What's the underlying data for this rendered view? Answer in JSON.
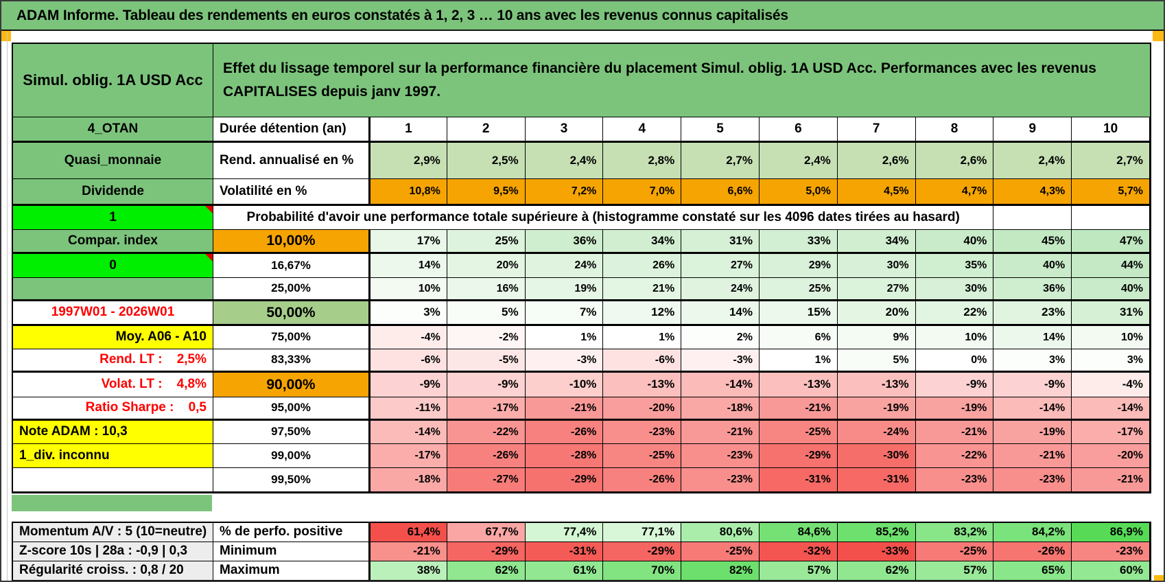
{
  "title": "ADAM Informe. Tableau des rendements en euros constatés à 1, 2, 3 … 10 ans avec les revenus connus capitalisés",
  "panel": {
    "product": "Simul. oblig. 1A USD Acc",
    "description": "Effet du lissage temporel sur la performance financière du placement Simul. oblig. 1A USD Acc. Performances avec les revenus CAPITALISES depuis janv 1997."
  },
  "table": {
    "duration_label": "Durée détention (an)",
    "durations": [
      "1",
      "2",
      "3",
      "4",
      "5",
      "6",
      "7",
      "8",
      "9",
      "10"
    ],
    "rend_label": "Rend. annualisé en %",
    "rend_values": [
      "2,9%",
      "2,5%",
      "2,4%",
      "2,8%",
      "2,7%",
      "2,4%",
      "2,6%",
      "2,6%",
      "2,4%",
      "2,7%"
    ],
    "volat_label": "Volatilité en %",
    "volat_values": [
      "10,8%",
      "9,5%",
      "7,2%",
      "7,0%",
      "6,6%",
      "5,0%",
      "4,5%",
      "4,7%",
      "4,3%",
      "5,7%"
    ],
    "probability_title": "Probabilité d'avoir une performance totale supérieure à (histogramme constaté sur les 4096 dates tirées au hasard)",
    "probability_rows": [
      {
        "threshold": "10,00%",
        "style": "orange",
        "bold": true,
        "values": [
          17,
          25,
          36,
          34,
          31,
          33,
          34,
          40,
          45,
          47
        ]
      },
      {
        "threshold": "16,67%",
        "style": "plain",
        "bold": false,
        "values": [
          14,
          20,
          24,
          26,
          27,
          29,
          30,
          35,
          40,
          44
        ]
      },
      {
        "threshold": "25,00%",
        "style": "plain",
        "bold": false,
        "values": [
          10,
          16,
          19,
          21,
          24,
          25,
          27,
          30,
          36,
          40
        ]
      },
      {
        "threshold": "50,00%",
        "style": "green",
        "bold": true,
        "values": [
          3,
          5,
          7,
          12,
          14,
          15,
          20,
          22,
          23,
          31
        ]
      },
      {
        "threshold": "75,00%",
        "style": "plain",
        "bold": false,
        "values": [
          -4,
          -2,
          1,
          1,
          2,
          6,
          9,
          10,
          14,
          10
        ]
      },
      {
        "threshold": "83,33%",
        "style": "plain",
        "bold": false,
        "values": [
          -6,
          -5,
          -3,
          -6,
          -3,
          1,
          5,
          0,
          3,
          3
        ]
      },
      {
        "threshold": "90,00%",
        "style": "orange",
        "bold": true,
        "values": [
          -9,
          -9,
          -10,
          -13,
          -14,
          -13,
          -13,
          -9,
          -9,
          -4
        ]
      },
      {
        "threshold": "95,00%",
        "style": "plain",
        "bold": false,
        "values": [
          -11,
          -17,
          -21,
          -20,
          -18,
          -21,
          -19,
          -19,
          -14,
          -14
        ]
      },
      {
        "threshold": "97,50%",
        "style": "plain",
        "bold": false,
        "values": [
          -14,
          -22,
          -26,
          -23,
          -21,
          -25,
          -24,
          -21,
          -19,
          -17
        ]
      },
      {
        "threshold": "99,00%",
        "style": "plain",
        "bold": false,
        "values": [
          -17,
          -26,
          -28,
          -25,
          -23,
          -29,
          -30,
          -22,
          -21,
          -20
        ]
      },
      {
        "threshold": "99,50%",
        "style": "plain",
        "bold": false,
        "values": [
          -18,
          -27,
          -29,
          -26,
          -23,
          -31,
          -31,
          -23,
          -23,
          -21
        ]
      }
    ]
  },
  "left_column": [
    {
      "text": "4_OTAN",
      "variant": "green",
      "align": "center"
    },
    {
      "text": "Quasi_monnaie",
      "variant": "green",
      "align": "center"
    },
    {
      "text": "Dividende",
      "variant": "green",
      "align": "center"
    },
    {
      "text": "1",
      "variant": "bright",
      "align": "center",
      "corner": true
    },
    {
      "text": "Compar. index",
      "variant": "green",
      "align": "center"
    },
    {
      "text": "0",
      "variant": "bright",
      "align": "center",
      "corner": true
    },
    {
      "text": "",
      "variant": "green",
      "align": "center"
    },
    {
      "text": "1997W01 - 2026W01",
      "variant": "date",
      "align": "center"
    },
    {
      "text": "Moy. A06 - A10",
      "variant": "yellow",
      "align": "right"
    },
    {
      "text": "Rend. LT :    2,5%",
      "variant": "redtext",
      "align": "right"
    },
    {
      "text": "Volat. LT :    4,8%",
      "variant": "redtext",
      "align": "right"
    },
    {
      "text": "Ratio Sharpe :    0,5",
      "variant": "redtext",
      "align": "right"
    },
    {
      "text": "Note ADAM : 10,3",
      "variant": "yellow",
      "align": "left"
    },
    {
      "text": "1_div. inconnu",
      "variant": "yellow",
      "align": "left"
    },
    {
      "text": "",
      "variant": "white",
      "align": "center"
    }
  ],
  "summary": {
    "rows": [
      {
        "left": "Momentum A/V : 5 (10=neutre)",
        "label": "% de perfo. positive",
        "scale": "local",
        "values": [
          61.4,
          67.7,
          77.4,
          77.1,
          80.6,
          84.6,
          85.2,
          83.2,
          84.2,
          86.9
        ]
      },
      {
        "left": "Z-score 10s | 28a : -0,9 | 0,3",
        "label": "Minimum",
        "scale": "min",
        "values": [
          -21,
          -29,
          -31,
          -29,
          -25,
          -32,
          -33,
          -25,
          -26,
          -23
        ]
      },
      {
        "left": "Régularité croiss. : 0,8 / 20",
        "label": "Maximum",
        "scale": "max",
        "values": [
          38,
          62,
          61,
          70,
          82,
          57,
          62,
          57,
          65,
          60
        ]
      }
    ]
  },
  "colors": {
    "header_green": "#7cc47c",
    "bright_green": "#00ee00",
    "orange": "#f5a402",
    "yellow": "#ffff00",
    "mid_green": "#a6cd8a",
    "rend_green": "#c6e0b4",
    "red_text": "#fe0000",
    "summary_label_bg": "#ededed",
    "corner_gold": "#fdb913",
    "scale_pos_soft": "#c0e8c0",
    "scale_neg_soft": "#f55f5b",
    "scale_pos_strong": "#57db57",
    "scale_neg_strong": "#f4504b",
    "scale_max_green": "#63dd63"
  }
}
